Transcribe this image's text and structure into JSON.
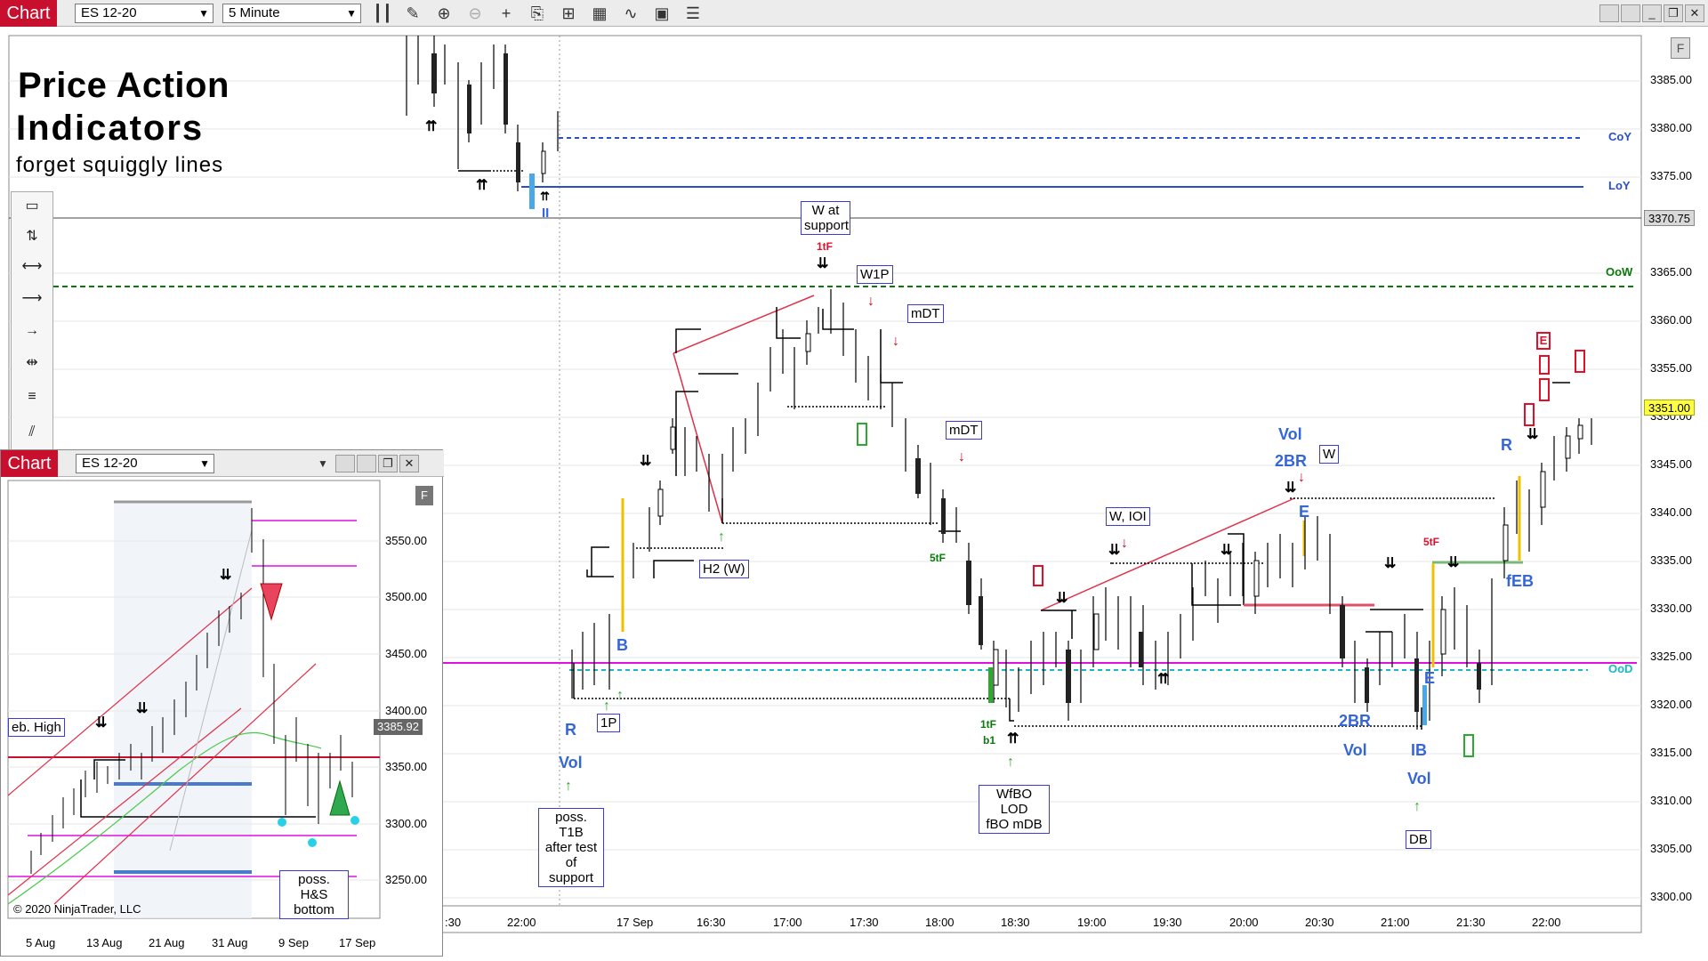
{
  "toolbar": {
    "tab_label": "Chart",
    "instrument": "ES 12-20",
    "interval": "5 Minute",
    "icons": [
      "bar-type-icon",
      "pencil-icon",
      "zoom-in-icon",
      "zoom-out-icon",
      "crosshair-icon",
      "properties-icon",
      "templates-icon",
      "strategies-icon",
      "indicators-icon",
      "data-box-icon"
    ]
  },
  "overlay_title": {
    "line1": "Price Action",
    "line2": "Indicators",
    "line3": "forget squiggly lines"
  },
  "main_chart": {
    "price_axis": [
      "3385.00",
      "3380.00",
      "3375.00",
      "3370.00",
      "3365.00",
      "3360.00",
      "3355.00",
      "3350.00",
      "3345.00",
      "3340.00",
      "3335.00",
      "3330.00",
      "3325.00",
      "3320.00",
      "3315.00",
      "3310.00",
      "3305.00",
      "3300.00"
    ],
    "time_axis": [
      ":30",
      "22:00",
      "17 Sep",
      "16:30",
      "17:00",
      "17:30",
      "18:00",
      "18:30",
      "19:00",
      "19:30",
      "20:00",
      "20:30",
      "21:00",
      "21:30",
      "22:00"
    ],
    "level_labels": {
      "coy": "CoY",
      "loy": "LoY",
      "oow": "OoW",
      "ood": "OoD"
    },
    "price_tags": {
      "crosshair": "3370.75",
      "last": "3351.00"
    },
    "annotation_boxes": {
      "w_support": [
        "W at",
        "support"
      ],
      "w1p": "W1P",
      "mdt1": "mDT",
      "mdt2": "mDT",
      "h2w": "H2 (W)",
      "one_p": "1P",
      "poss_t1b": [
        "poss. T1B",
        "after test",
        "of support"
      ],
      "wfbo": [
        "WfBO LOD",
        "fBO mDB"
      ],
      "w_ioi": "W, IOI",
      "w_box": "W",
      "db": "DB"
    },
    "blue_labels": {
      "b": "B",
      "r1": "R",
      "vol1": "Vol",
      "vol2": "Vol",
      "twobr1": "2BR",
      "e1": "E",
      "twobr2": "2BR",
      "vol3": "Vol",
      "ib": "IB",
      "vol4": "Vol",
      "e2": "E",
      "feb": "fEB",
      "r2": "R",
      "ii": "II"
    },
    "small_labels": {
      "one_tf_top": "1tF",
      "five_tf1": "5tF",
      "one_tf_bot": "1tF",
      "b1": "b1",
      "five_tf2": "5tF"
    },
    "red_boxes": {
      "e_box": "E"
    },
    "f_badge": "F"
  },
  "inset_chart": {
    "tab_label": "Chart",
    "instrument": "ES 12-20",
    "f_badge": "F",
    "price_axis": [
      "3550.00",
      "3500.00",
      "3450.00",
      "3400.00",
      "3350.00",
      "3300.00",
      "3250.00"
    ],
    "time_axis": [
      "5 Aug",
      "13 Aug",
      "21 Aug",
      "31 Aug",
      "9 Sep",
      "17 Sep"
    ],
    "price_tag": "3385.92",
    "labels": {
      "feb_high": "eb. High",
      "hs_bottom": [
        "poss. H&S",
        "bottom"
      ],
      "copyright": "© 2020 NinjaTrader, LLC"
    }
  }
}
